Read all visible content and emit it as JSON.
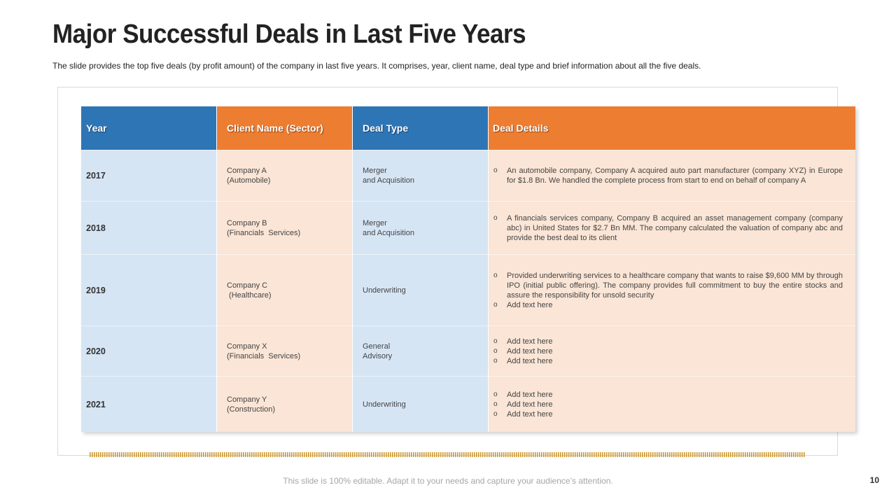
{
  "slide": {
    "title": "Major Successful Deals in Last Five Years",
    "subtitle": "The slide provides the top five deals (by profit amount) of the company in last five years. It comprises, year, client name, deal type and brief information about all the five deals.",
    "footer_note": "This slide is 100% editable. Adapt it to your needs and capture your audience’s attention.",
    "page_number": "10"
  },
  "colors": {
    "header_blue": "#2e75b6",
    "header_orange": "#ed7d31",
    "cell_blue": "#d6e5f4",
    "cell_peach": "#fae5d6",
    "accent_bar": "#c8932a"
  },
  "table": {
    "headers": {
      "year": "Year",
      "client": "Client Name (Sector)",
      "deal_type": "Deal Type",
      "details": "Deal Details"
    },
    "bullet_marker": "o",
    "rows": [
      {
        "year": "2017",
        "client": [
          "Company A",
          "(Automobile)"
        ],
        "deal_type": [
          "Merger",
          "and Acquisition"
        ],
        "details": [
          "An automobile company, Company A acquired auto part manufacturer (company XYZ) in Europe for $1.8 Bn. We handled the complete process from start to end on behalf of company A"
        ]
      },
      {
        "year": "2018",
        "client": [
          "Company B",
          "(Financials  Services)"
        ],
        "deal_type": [
          "Merger",
          "and Acquisition"
        ],
        "details": [
          "A financials services company, Company B acquired an asset management company (company abc) in United States for $2.7 Bn MM. The company calculated the valuation of company abc and provide the best deal to its client"
        ]
      },
      {
        "year": "2019",
        "client": [
          "Company C",
          " (Healthcare)"
        ],
        "deal_type": [
          "Underwriting"
        ],
        "details": [
          "Provided underwriting services to a healthcare company that wants to raise $9,600 MM by through IPO (initial public offering). The company provides full commitment  to buy the entire stocks and assure the responsibility  for unsold security",
          "Add text here"
        ]
      },
      {
        "year": "2020",
        "client": [
          "Company X",
          "(Financials  Services)"
        ],
        "deal_type": [
          "General",
          "Advisory"
        ],
        "details": [
          "Add text here",
          "Add text here",
          "Add text here"
        ]
      },
      {
        "year": "2021",
        "client": [
          "Company Y",
          "(Construction)"
        ],
        "deal_type": [
          "Underwriting"
        ],
        "details": [
          "Add text here",
          "Add text here",
          "Add text here"
        ]
      }
    ]
  }
}
